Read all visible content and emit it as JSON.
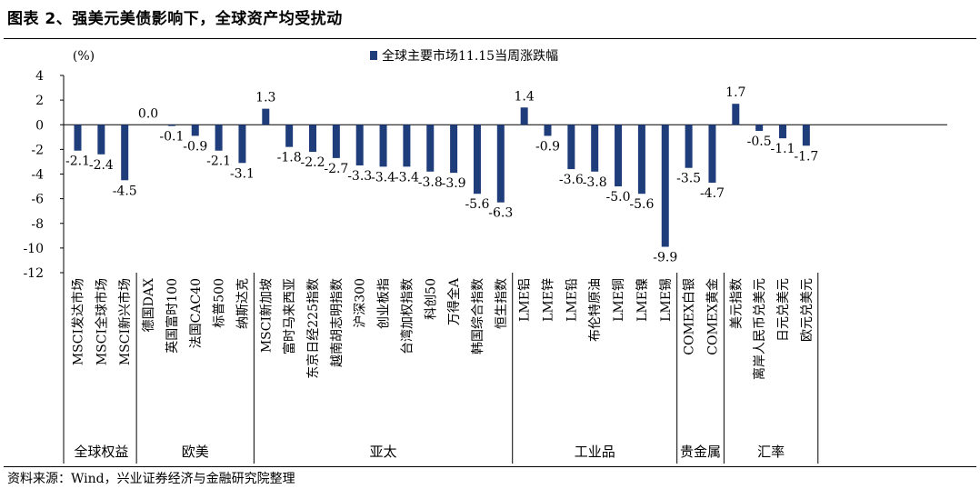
{
  "figure": {
    "title": "图表 2、强美元美债影响下，全球资产均受扰动",
    "source": "资料来源：Wind，兴业证券经济与金融研究院整理"
  },
  "chart_data": {
    "type": "bar",
    "unit_label": "(%)",
    "series": [
      {
        "name": "全球主要市场11.15当周涨跌幅",
        "color": "#1f3d7a"
      }
    ],
    "ylim": [
      -12,
      4
    ],
    "yticks": [
      4,
      2,
      0,
      -2,
      -4,
      -6,
      -8,
      -10,
      -12
    ],
    "grid": false,
    "legend_position": "top-center",
    "categories": [
      "MSCI发达市场",
      "MSCI全球市场",
      "MSCI新兴市场",
      "德国DAX",
      "英国富时100",
      "法国CAC40",
      "标普500",
      "纳斯达克",
      "MSCI新加坡",
      "富时马来西亚",
      "东京日经225指数",
      "越南胡志明指数",
      "沪深300",
      "创业板指",
      "台湾加权指数",
      "科创50",
      "万得全A",
      "韩国综合指数",
      "恒生指数",
      "LME铝",
      "LME锌",
      "LME铅",
      "布伦特原油",
      "LME铜",
      "LME镍",
      "LME锡",
      "COMEX白银",
      "COMEX黄金",
      "美元指数",
      "离岸人民币兑美元",
      "日元兑美元",
      "欧元兑美元"
    ],
    "values": [
      -2.1,
      -2.4,
      -4.5,
      0.0,
      -0.1,
      -0.9,
      -2.1,
      -3.1,
      1.3,
      -1.8,
      -2.2,
      -2.7,
      -3.3,
      -3.4,
      -3.4,
      -3.8,
      -3.9,
      -5.6,
      -6.3,
      1.4,
      -0.9,
      -3.6,
      -3.8,
      -5.0,
      -5.6,
      -9.9,
      -3.5,
      -4.7,
      1.7,
      -0.5,
      -1.1,
      -1.7
    ],
    "value_labels": [
      "-2.1",
      "-2.4",
      "-4.5",
      "0.0",
      "-0.1",
      "-0.9",
      "-2.1",
      "-3.1",
      "1.3",
      "-1.8",
      "-2.2",
      "-2.7",
      "-3.3",
      "-3.4",
      "-3.4",
      "-3.8",
      "-3.9",
      "-5.6",
      "-6.3",
      "1.4",
      "-0.9",
      "-3.6",
      "-3.8",
      "-5.0",
      "-5.6",
      "-9.9",
      "-3.5",
      "-4.7",
      "1.7",
      "-0.5",
      "-1.1",
      "-1.7"
    ],
    "groups": [
      {
        "name": "全球权益",
        "count": 3
      },
      {
        "name": "欧美",
        "count": 5
      },
      {
        "name": "亚太",
        "count": 11
      },
      {
        "name": "工业品",
        "count": 7
      },
      {
        "name": "贵金属",
        "count": 2
      },
      {
        "name": "汇率",
        "count": 4
      }
    ]
  }
}
